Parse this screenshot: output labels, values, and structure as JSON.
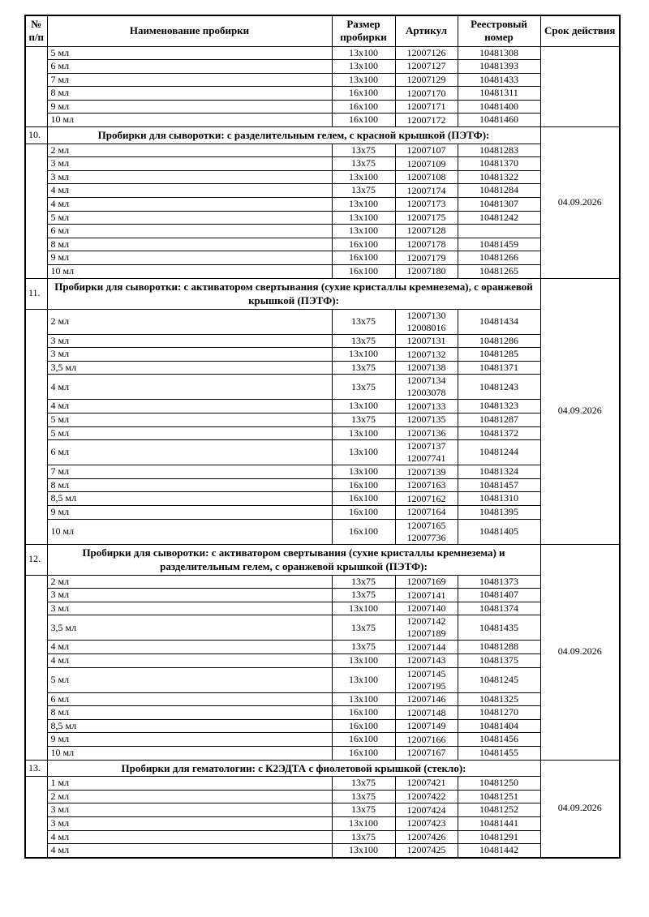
{
  "table": {
    "columns": [
      "№ п/п",
      "Наименование пробирки",
      "Размер пробирки",
      "Артикул",
      "Реестровый номер",
      "Срок действия"
    ],
    "groups": [
      {
        "number": "",
        "title": null,
        "validity": "",
        "rows": [
          {
            "name": "5 мл",
            "size": "13x100",
            "articles": [
              "12007126"
            ],
            "registry": "10481308"
          },
          {
            "name": "6 мл",
            "size": "13x100",
            "articles": [
              "12007127"
            ],
            "registry": "10481393"
          },
          {
            "name": "7 мл",
            "size": "13x100",
            "articles": [
              "12007129"
            ],
            "registry": "10481433"
          },
          {
            "name": "8 мл",
            "size": "16x100",
            "articles": [
              "12007170"
            ],
            "registry": "10481311"
          },
          {
            "name": "9 мл",
            "size": "16x100",
            "articles": [
              "12007171"
            ],
            "registry": "10481400"
          },
          {
            "name": "10 мл",
            "size": "16x100",
            "articles": [
              "12007172"
            ],
            "registry": "10481460"
          }
        ]
      },
      {
        "number": "10.",
        "title": "Пробирки для сыворотки: с разделительным гелем, с красной крышкой (ПЭТФ):",
        "validity": "04.09.2026",
        "rows": [
          {
            "name": "2 мл",
            "size": "13x75",
            "articles": [
              "12007107"
            ],
            "registry": "10481283"
          },
          {
            "name": "3 мл",
            "size": "13x75",
            "articles": [
              "12007109"
            ],
            "registry": "10481370"
          },
          {
            "name": "3 мл",
            "size": "13x100",
            "articles": [
              "12007108"
            ],
            "registry": "10481322"
          },
          {
            "name": "4 мл",
            "size": "13x75",
            "articles": [
              "12007174"
            ],
            "registry": "10481284"
          },
          {
            "name": "4 мл",
            "size": "13x100",
            "articles": [
              "12007173"
            ],
            "registry": "10481307"
          },
          {
            "name": "5 мл",
            "size": "13x100",
            "articles": [
              "12007175"
            ],
            "registry": "10481242"
          },
          {
            "name": "6 мл",
            "size": "13x100",
            "articles": [
              "12007128"
            ],
            "registry": ""
          },
          {
            "name": "8 мл",
            "size": "16x100",
            "articles": [
              "12007178"
            ],
            "registry": "10481459"
          },
          {
            "name": "9 мл",
            "size": "16x100",
            "articles": [
              "12007179"
            ],
            "registry": "10481266"
          },
          {
            "name": "10 мл",
            "size": "16x100",
            "articles": [
              "12007180"
            ],
            "registry": "10481265"
          }
        ]
      },
      {
        "number": "11.",
        "title": "Пробирки для сыворотки: с активатором свертывания (сухие кристаллы кремнезема), с оранжевой крышкой (ПЭТФ):",
        "validity": "04.09.2026",
        "rows": [
          {
            "name": "2 мл",
            "size": "13x75",
            "articles": [
              "12007130",
              "12008016"
            ],
            "registry": "10481434"
          },
          {
            "name": "3 мл",
            "size": "13x75",
            "articles": [
              "12007131"
            ],
            "registry": "10481286"
          },
          {
            "name": "3 мл",
            "size": "13x100",
            "articles": [
              "12007132"
            ],
            "registry": "10481285"
          },
          {
            "name": "3,5 мл",
            "size": "13x75",
            "articles": [
              "12007138"
            ],
            "registry": "10481371"
          },
          {
            "name": "4 мл",
            "size": "13x75",
            "articles": [
              "12007134",
              "12003078"
            ],
            "registry": "10481243"
          },
          {
            "name": "4 мл",
            "size": "13x100",
            "articles": [
              "12007133"
            ],
            "registry": "10481323"
          },
          {
            "name": "5 мл",
            "size": "13x75",
            "articles": [
              "12007135"
            ],
            "registry": "10481287"
          },
          {
            "name": "5 мл",
            "size": "13x100",
            "articles": [
              "12007136"
            ],
            "registry": "10481372"
          },
          {
            "name": "6 мл",
            "size": "13x100",
            "articles": [
              "12007137",
              "12007741"
            ],
            "registry": "10481244"
          },
          {
            "name": "7 мл",
            "size": "13x100",
            "articles": [
              "12007139"
            ],
            "registry": "10481324"
          },
          {
            "name": "8 мл",
            "size": "16x100",
            "articles": [
              "12007163"
            ],
            "registry": "10481457"
          },
          {
            "name": "8,5 мл",
            "size": "16x100",
            "articles": [
              "12007162"
            ],
            "registry": "10481310"
          },
          {
            "name": "9 мл",
            "size": "16x100",
            "articles": [
              "12007164"
            ],
            "registry": "10481395"
          },
          {
            "name": "10 мл",
            "size": "16x100",
            "articles": [
              "12007165",
              "12007736"
            ],
            "registry": "10481405"
          }
        ]
      },
      {
        "number": "12.",
        "title": "Пробирки для сыворотки: с активатором свертывания (сухие кристаллы кремнезема) и разделительным гелем, с оранжевой крышкой (ПЭТФ):",
        "validity": "04.09.2026",
        "rows": [
          {
            "name": "2 мл",
            "size": "13x75",
            "articles": [
              "12007169"
            ],
            "registry": "10481373"
          },
          {
            "name": "3 мл",
            "size": "13x75",
            "articles": [
              "12007141"
            ],
            "registry": "10481407"
          },
          {
            "name": "3 мл",
            "size": "13x100",
            "articles": [
              "12007140"
            ],
            "registry": "10481374"
          },
          {
            "name": "3,5 мл",
            "size": "13x75",
            "articles": [
              "12007142",
              "12007189"
            ],
            "registry": "10481435"
          },
          {
            "name": "4 мл",
            "size": "13x75",
            "articles": [
              "12007144"
            ],
            "registry": "10481288"
          },
          {
            "name": "4 мл",
            "size": "13x100",
            "articles": [
              "12007143"
            ],
            "registry": "10481375"
          },
          {
            "name": "5 мл",
            "size": "13x100",
            "articles": [
              "12007145",
              "12007195"
            ],
            "registry": "10481245"
          },
          {
            "name": "6 мл",
            "size": "13x100",
            "articles": [
              "12007146"
            ],
            "registry": "10481325"
          },
          {
            "name": "8 мл",
            "size": "16x100",
            "articles": [
              "12007148"
            ],
            "registry": "10481270"
          },
          {
            "name": "8,5 мл",
            "size": "16x100",
            "articles": [
              "12007149"
            ],
            "registry": "10481404"
          },
          {
            "name": "9 мл",
            "size": "16x100",
            "articles": [
              "12007166"
            ],
            "registry": "10481456"
          },
          {
            "name": "10 мл",
            "size": "16x100",
            "articles": [
              "12007167"
            ],
            "registry": "10481455"
          }
        ]
      },
      {
        "number": "13.",
        "title": "Пробирки для гематологии: с К2ЭДТА с фиолетовой крышкой (стекло):",
        "validity": "04.09.2026",
        "rows": [
          {
            "name": "1 мл",
            "size": "13x75",
            "articles": [
              "12007421"
            ],
            "registry": "10481250"
          },
          {
            "name": "2 мл",
            "size": "13x75",
            "articles": [
              "12007422"
            ],
            "registry": "10481251"
          },
          {
            "name": "3 мл",
            "size": "13x75",
            "articles": [
              "12007424"
            ],
            "registry": "10481252"
          },
          {
            "name": "3 мл",
            "size": "13x100",
            "articles": [
              "12007423"
            ],
            "registry": "10481441"
          },
          {
            "name": "4 мл",
            "size": "13x75",
            "articles": [
              "12007426"
            ],
            "registry": "10481291"
          },
          {
            "name": "4 мл",
            "size": "13x100",
            "articles": [
              "12007425"
            ],
            "registry": "10481442"
          }
        ]
      }
    ]
  }
}
